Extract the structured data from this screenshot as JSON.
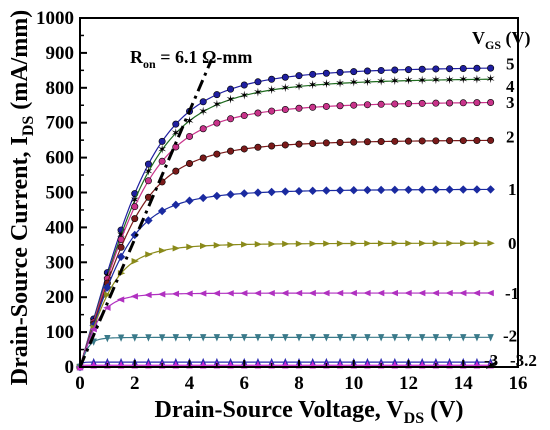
{
  "chart_data": {
    "type": "line",
    "xlabel": {
      "main": "Drain-Source Voltage, V",
      "sub": "DS",
      "unit": " (V)"
    },
    "ylabel": {
      "main": "Drain-Source Current, I",
      "sub": "DS",
      "unit": " (mA/mm)"
    },
    "xlim": [
      0,
      16
    ],
    "ylim": [
      0,
      1000
    ],
    "xticks": [
      0,
      2,
      4,
      6,
      8,
      10,
      12,
      14,
      16
    ],
    "yticks": [
      0,
      100,
      200,
      300,
      400,
      500,
      600,
      700,
      800,
      900,
      1000
    ],
    "legend_title": {
      "main": "V",
      "sub": "GS",
      "unit": " (V)"
    },
    "annotation": {
      "main": "R",
      "sub": "on",
      "rest": " = 6.1 Ω-mm"
    },
    "ron_line": {
      "x": [
        0,
        4.8
      ],
      "y": [
        0,
        880
      ]
    },
    "x": [
      0,
      0.5,
      1,
      1.5,
      2,
      2.5,
      3,
      3.5,
      4,
      4.5,
      5,
      5.5,
      6,
      6.5,
      7,
      7.5,
      8,
      8.5,
      9,
      9.5,
      10,
      10.5,
      11,
      11.5,
      12,
      12.5,
      13,
      13.5,
      14,
      14.5,
      15
    ],
    "series": [
      {
        "name": "5",
        "color": "#1f1fa0",
        "marker": "circle",
        "vsat": 862,
        "k": 0.32,
        "p": 2.6,
        "label_y": 870
      },
      {
        "name": "4",
        "color": "#1f6b1f",
        "marker": "star",
        "vsat": 830,
        "k": 0.32,
        "p": 2.6,
        "label_y": 805
      },
      {
        "name": "3",
        "color": "#c8338a",
        "marker": "circle",
        "vsat": 762,
        "k": 0.34,
        "p": 2.6,
        "label_y": 760
      },
      {
        "name": "2",
        "color": "#7a1a1a",
        "marker": "circle",
        "vsat": 652,
        "k": 0.38,
        "p": 2.6,
        "label_y": 660
      },
      {
        "name": "1",
        "color": "#1a2aa0",
        "marker": "diamond",
        "vsat": 510,
        "k": 0.47,
        "p": 2.6,
        "label_y": 510
      },
      {
        "name": "0",
        "color": "#8a8a1a",
        "marker": "tri-right",
        "vsat": 355,
        "k": 0.65,
        "p": 2.6,
        "label_y": 355
      },
      {
        "name": "-1",
        "color": "#b030c0",
        "marker": "tri-left",
        "vsat": 212,
        "k": 1.1,
        "p": 2.6,
        "label_y": 212
      },
      {
        "name": "-2",
        "color": "#3a7a8a",
        "marker": "tri-down",
        "vsat": 85,
        "k": 2.6,
        "p": 2.6,
        "label_y": 90
      },
      {
        "name": "-3",
        "color": "#2a2ab0",
        "marker": "tri-up",
        "vsat": 14,
        "k": 12,
        "p": 2.6,
        "label_y": 20
      },
      {
        "name": "-3.2",
        "color": "#d02ad0",
        "marker": "tri-up",
        "vsat": 5,
        "k": 30,
        "p": 2.6,
        "label_y": 20
      }
    ]
  }
}
